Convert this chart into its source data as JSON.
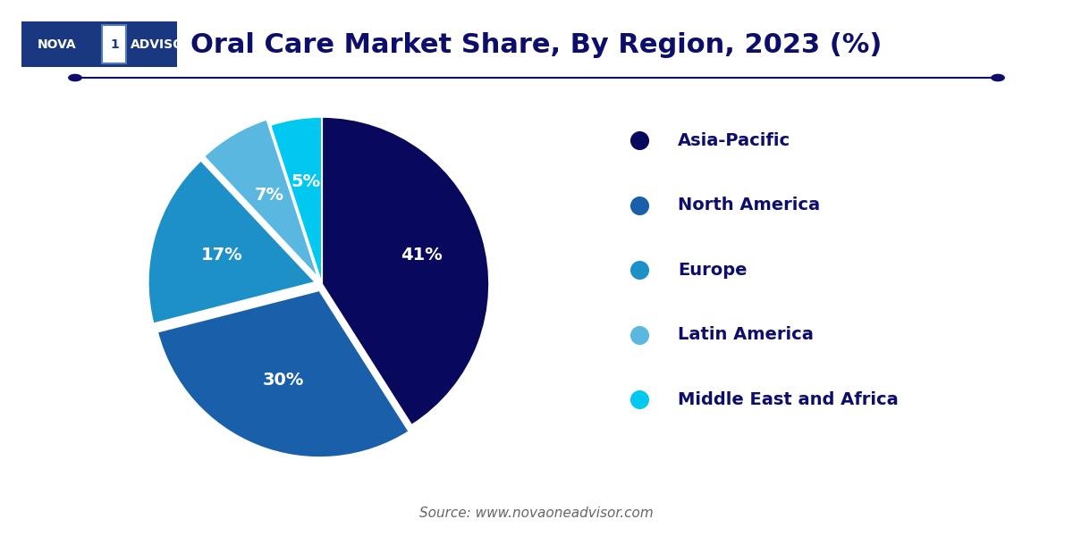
{
  "title": "Oral Care Market Share, By Region, 2023 (%)",
  "title_color": "#0d0d6b",
  "title_fontsize": 22,
  "background_color": "#ffffff",
  "slices": [
    41,
    30,
    17,
    7,
    5
  ],
  "labels": [
    "Asia-Pacific",
    "North America",
    "Europe",
    "Latin America",
    "Middle East and Africa"
  ],
  "colors": [
    "#08085c",
    "#1a5faa",
    "#1e90c8",
    "#5ab8e0",
    "#00c8f0"
  ],
  "pct_labels": [
    "41%",
    "30%",
    "17%",
    "7%",
    "5%"
  ],
  "explode": [
    0,
    0.04,
    0.04,
    0.04,
    0
  ],
  "startangle": 90,
  "label_color": "#ffffff",
  "label_fontsize": 14,
  "legend_fontsize": 14,
  "legend_text_color": "#0d0d6b",
  "source_text": "Source: www.novaoneadvisor.com",
  "source_fontsize": 11,
  "source_color": "#666666",
  "separator_color": "#0d0d6b"
}
